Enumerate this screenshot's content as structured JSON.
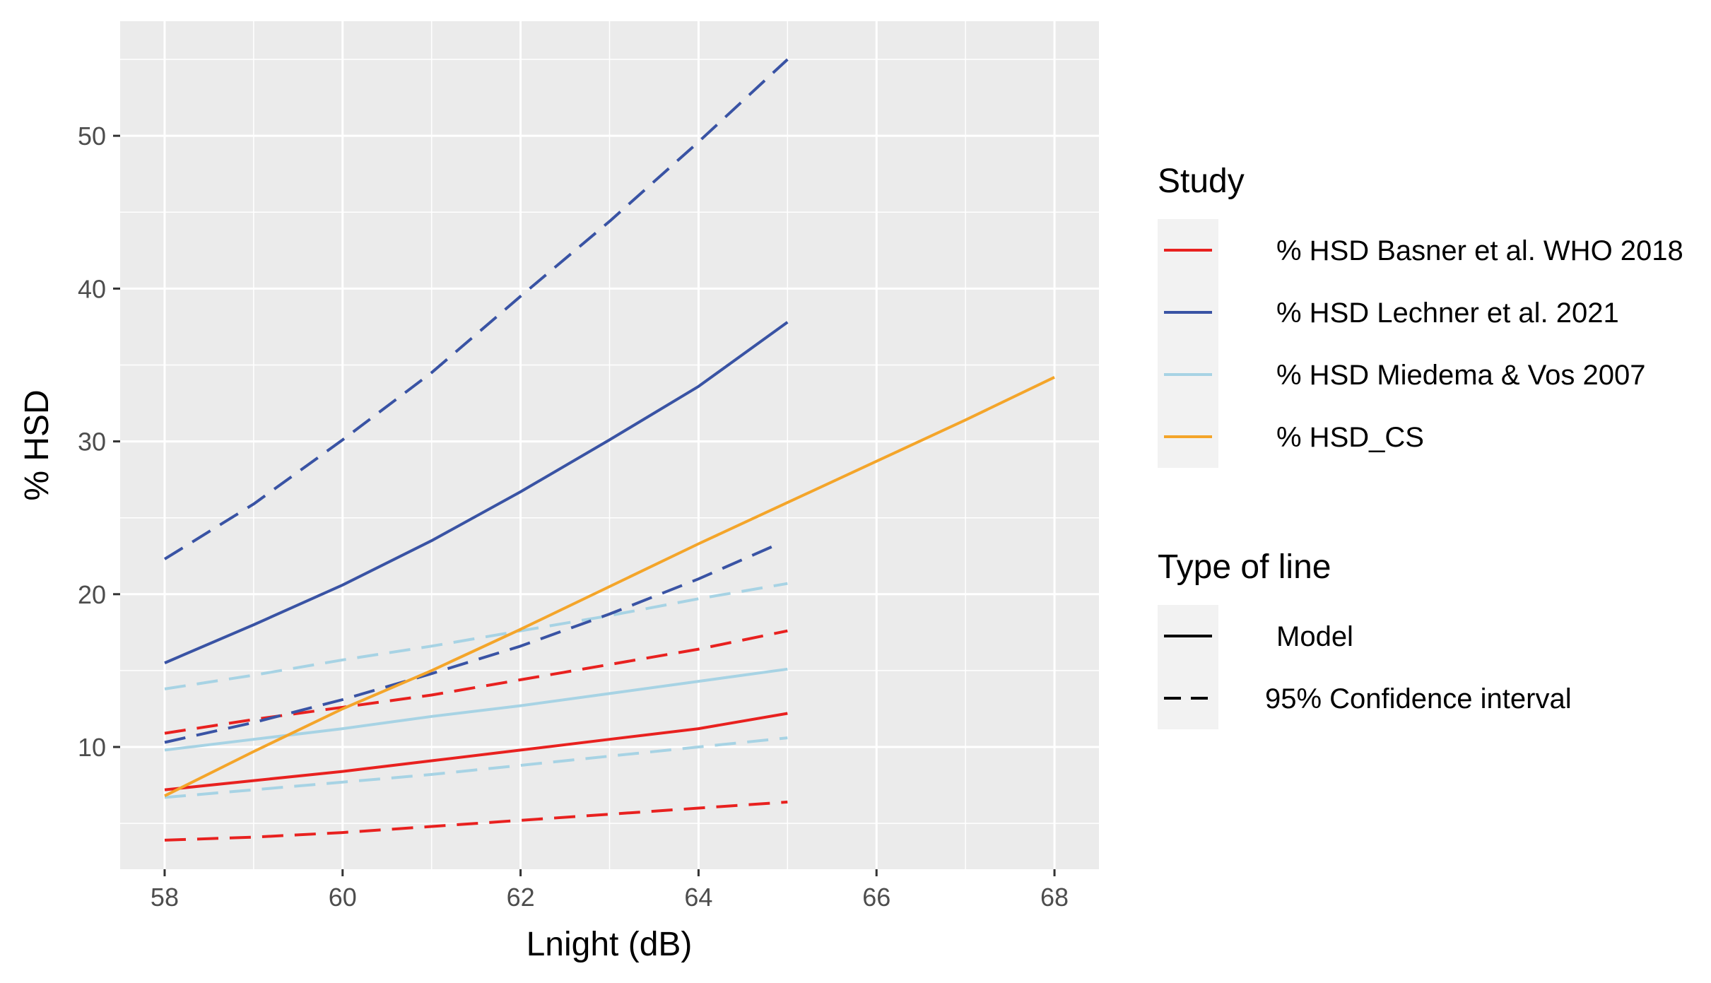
{
  "chart_data": {
    "type": "line",
    "xlabel": "Lnight (dB)",
    "ylabel": "% HSD",
    "xlim": [
      57.5,
      68.5
    ],
    "ylim": [
      2.0,
      57.5
    ],
    "x_ticks": [
      58,
      60,
      62,
      64,
      66,
      68
    ],
    "x_tick_labels": [
      "58",
      "60",
      "62",
      "64",
      "66",
      "68"
    ],
    "y_ticks": [
      10,
      20,
      30,
      40,
      50
    ],
    "y_tick_labels": [
      "10",
      "20",
      "30",
      "40",
      "50"
    ],
    "grid": true,
    "legend_position": "right",
    "colors": {
      "panel_bg": "#ebebeb",
      "grid": "#ffffff",
      "basner": "#e8211f",
      "lechner": "#3953a4",
      "miedema": "#a7d3e4",
      "cs": "#f4a52a"
    },
    "series": [
      {
        "name": "basner-model",
        "study": "% HSD Basner et al. WHO 2018",
        "line": "Model",
        "color": "#e8211f",
        "x": [
          58,
          59,
          60,
          61,
          62,
          63,
          64,
          65
        ],
        "y": [
          7.2,
          7.8,
          8.4,
          9.1,
          9.8,
          10.5,
          11.2,
          12.2
        ]
      },
      {
        "name": "basner-ci-upper",
        "study": "% HSD Basner et al. WHO 2018",
        "line": "95% Confidence interval",
        "color": "#e8211f",
        "x": [
          58,
          59,
          60,
          61,
          62,
          63,
          64,
          65
        ],
        "y": [
          10.9,
          11.8,
          12.6,
          13.4,
          14.4,
          15.4,
          16.4,
          17.6
        ]
      },
      {
        "name": "basner-ci-lower",
        "study": "% HSD Basner et al. WHO 2018",
        "line": "95% Confidence interval",
        "color": "#e8211f",
        "x": [
          58,
          59,
          60,
          61,
          62,
          63,
          64,
          65
        ],
        "y": [
          3.9,
          4.1,
          4.4,
          4.8,
          5.2,
          5.6,
          6.0,
          6.4
        ]
      },
      {
        "name": "lechner-model",
        "study": "% HSD Lechner et al. 2021",
        "line": "Model",
        "color": "#3953a4",
        "x": [
          58,
          59,
          60,
          61,
          62,
          63,
          64,
          65
        ],
        "y": [
          15.5,
          18.0,
          20.6,
          23.5,
          26.7,
          30.1,
          33.6,
          37.8
        ]
      },
      {
        "name": "lechner-ci-upper",
        "study": "% HSD Lechner et al. 2021",
        "line": "95% Confidence interval",
        "color": "#3953a4",
        "x": [
          58,
          59,
          60,
          61,
          62,
          63,
          64,
          65
        ],
        "y": [
          22.3,
          25.9,
          30.1,
          34.5,
          39.5,
          44.4,
          49.6,
          55.0
        ]
      },
      {
        "name": "lechner-ci-lower",
        "study": "% HSD Lechner et al. 2021",
        "line": "95% Confidence interval",
        "color": "#3953a4",
        "x": [
          58,
          59,
          60,
          61,
          62,
          63,
          64,
          64.9
        ],
        "y": [
          10.3,
          11.6,
          13.1,
          14.8,
          16.6,
          18.7,
          21.0,
          23.3
        ]
      },
      {
        "name": "miedema-model",
        "study": "% HSD Miedema & Vos 2007",
        "line": "Model",
        "color": "#a7d3e4",
        "x": [
          58,
          59,
          60,
          61,
          62,
          63,
          64,
          65
        ],
        "y": [
          9.8,
          10.5,
          11.2,
          12.0,
          12.7,
          13.5,
          14.3,
          15.1
        ]
      },
      {
        "name": "miedema-ci-upper",
        "study": "% HSD Miedema & Vos 2007",
        "line": "95% Confidence interval",
        "color": "#a7d3e4",
        "x": [
          58,
          59,
          60,
          61,
          62,
          63,
          64,
          65
        ],
        "y": [
          13.8,
          14.7,
          15.7,
          16.6,
          17.6,
          18.6,
          19.7,
          20.7
        ]
      },
      {
        "name": "miedema-ci-lower",
        "study": "% HSD Miedema & Vos 2007",
        "line": "95% Confidence interval",
        "color": "#a7d3e4",
        "x": [
          58,
          59,
          60,
          61,
          62,
          63,
          64,
          65
        ],
        "y": [
          6.7,
          7.2,
          7.7,
          8.2,
          8.8,
          9.4,
          10.0,
          10.6
        ]
      },
      {
        "name": "cs-model",
        "study": "% HSD_CS",
        "line": "Model",
        "color": "#f4a52a",
        "x": [
          58,
          59,
          60,
          61,
          62,
          63,
          64,
          65,
          66,
          67,
          68
        ],
        "y": [
          6.8,
          9.7,
          12.5,
          15.0,
          17.7,
          20.5,
          23.3,
          26.0,
          28.7,
          31.4,
          34.2
        ]
      }
    ],
    "legend": {
      "study_title": "Study",
      "study_entries": [
        {
          "label": "% HSD Basner et al. WHO 2018",
          "color": "#e8211f"
        },
        {
          "label": "% HSD Lechner et al. 2021",
          "color": "#3953a4"
        },
        {
          "label": "% HSD Miedema & Vos 2007",
          "color": "#a7d3e4"
        },
        {
          "label": "% HSD_CS",
          "color": "#f4a52a"
        }
      ],
      "line_title": "Type of line",
      "line_entries": [
        {
          "label": "Model",
          "dash": "solid"
        },
        {
          "label": "95% Confidence interval",
          "dash": "dashed"
        }
      ]
    }
  }
}
